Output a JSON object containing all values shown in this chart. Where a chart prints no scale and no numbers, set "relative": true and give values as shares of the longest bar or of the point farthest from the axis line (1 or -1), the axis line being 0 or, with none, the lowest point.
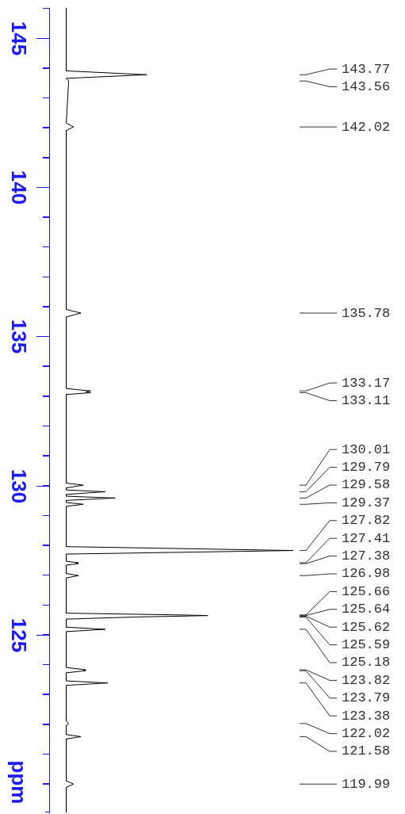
{
  "chart_data": {
    "type": "line",
    "orientation": "horizontal",
    "relative": true,
    "ylabel": "ppm",
    "ylim": [
      119.04,
      146.01
    ],
    "grid": false,
    "legend": false,
    "marker": "none",
    "tick_labels": "y",
    "yticks": [
      {
        "value": 146,
        "label": null
      },
      145,
      {
        "value": 144,
        "label": null
      },
      {
        "value": 143,
        "label": null
      },
      {
        "value": 142,
        "label": null
      },
      {
        "value": 141,
        "label": null
      },
      140,
      {
        "value": 139,
        "label": null
      },
      {
        "value": 138,
        "label": null
      },
      {
        "value": 137,
        "label": null
      },
      {
        "value": 136,
        "label": null
      },
      135,
      {
        "value": 134,
        "label": null
      },
      {
        "value": 133,
        "label": null
      },
      {
        "value": 132,
        "label": null
      },
      {
        "value": 131,
        "label": null
      },
      130,
      {
        "value": 129,
        "label": null
      },
      {
        "value": 128,
        "label": null
      },
      {
        "value": 127,
        "label": null
      },
      {
        "value": 126,
        "label": null
      },
      125,
      {
        "value": 124,
        "label": null
      },
      {
        "value": 123,
        "label": null
      },
      {
        "value": 122,
        "label": null
      },
      {
        "value": 121,
        "label": null
      },
      {
        "value": 120,
        "label": null
      }
    ],
    "series": [
      {
        "color": "#000000",
        "x": [
          146.0,
          143.9,
          143.77,
          143.65,
          143.56,
          142.15,
          142.02,
          141.9,
          135.9,
          135.78,
          135.65,
          133.25,
          133.17,
          133.14,
          133.11,
          133.05,
          130.08,
          130.01,
          129.92,
          129.85,
          129.79,
          129.7,
          129.64,
          129.58,
          129.5,
          129.43,
          129.37,
          129.3,
          127.95,
          127.82,
          127.7,
          127.46,
          127.41,
          127.395,
          127.38,
          127.33,
          127.05,
          126.98,
          126.9,
          125.72,
          125.66,
          125.64,
          125.62,
          125.59,
          125.52,
          125.25,
          125.18,
          125.1,
          123.9,
          123.82,
          123.805,
          123.79,
          123.72,
          123.45,
          123.38,
          123.3,
          122.1,
          122.02,
          121.95,
          121.65,
          121.58,
          121.5,
          120.1,
          119.99,
          119.88,
          119.04
        ],
        "values": [
          0.07,
          0.07,
          0.4,
          0.07,
          0.08,
          0.07,
          0.1,
          0.07,
          0.07,
          0.13,
          0.07,
          0.07,
          0.17,
          0.15,
          0.17,
          0.07,
          0.07,
          0.14,
          0.07,
          0.07,
          0.23,
          0.07,
          0.07,
          0.27,
          0.07,
          0.07,
          0.14,
          0.07,
          0.07,
          1.0,
          0.07,
          0.07,
          0.12,
          0.11,
          0.12,
          0.07,
          0.07,
          0.12,
          0.07,
          0.07,
          0.54,
          0.65,
          0.54,
          0.35,
          0.07,
          0.07,
          0.23,
          0.07,
          0.07,
          0.15,
          0.14,
          0.15,
          0.07,
          0.07,
          0.24,
          0.07,
          0.07,
          0.08,
          0.07,
          0.07,
          0.13,
          0.07,
          0.07,
          0.1,
          0.07,
          0.07
        ]
      }
    ],
    "annotations": [
      "143.77",
      "143.56",
      "142.02",
      "135.78",
      "133.17",
      "133.11",
      "130.01",
      "129.79",
      "129.58",
      "129.37",
      "127.82",
      "127.41",
      "127.38",
      "126.98",
      "125.66",
      "125.64",
      "125.62",
      "125.59",
      "125.18",
      "123.82",
      "123.79",
      "123.38",
      "122.02",
      "121.58",
      "119.99"
    ]
  }
}
